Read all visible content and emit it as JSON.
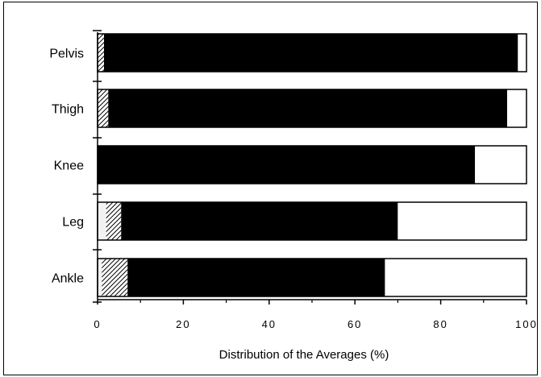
{
  "chart_data": {
    "type": "bar",
    "orientation": "horizontal",
    "stacked": true,
    "title": "",
    "xlabel": "Distribution of the Averages (%)",
    "ylabel": "",
    "xlim": [
      0,
      100
    ],
    "xticks": [
      0,
      20,
      40,
      60,
      80,
      100
    ],
    "categories": [
      "Pelvis",
      "Thigh",
      "Knee",
      "Leg",
      "Ankle"
    ],
    "series": [
      {
        "fill": "light",
        "values": [
          0,
          0,
          0,
          2,
          1
        ]
      },
      {
        "fill": "hatched",
        "values": [
          1.5,
          2.5,
          0,
          3.5,
          6
        ]
      },
      {
        "fill": "black",
        "values": [
          96.5,
          93,
          88,
          64.5,
          60
        ]
      },
      {
        "fill": "white",
        "values": [
          2,
          4.5,
          12,
          30,
          33
        ]
      }
    ],
    "colors": {
      "black": "#000000",
      "white": "#ffffff",
      "light": "#f2f2f2"
    },
    "grid": false,
    "legend": "none"
  }
}
